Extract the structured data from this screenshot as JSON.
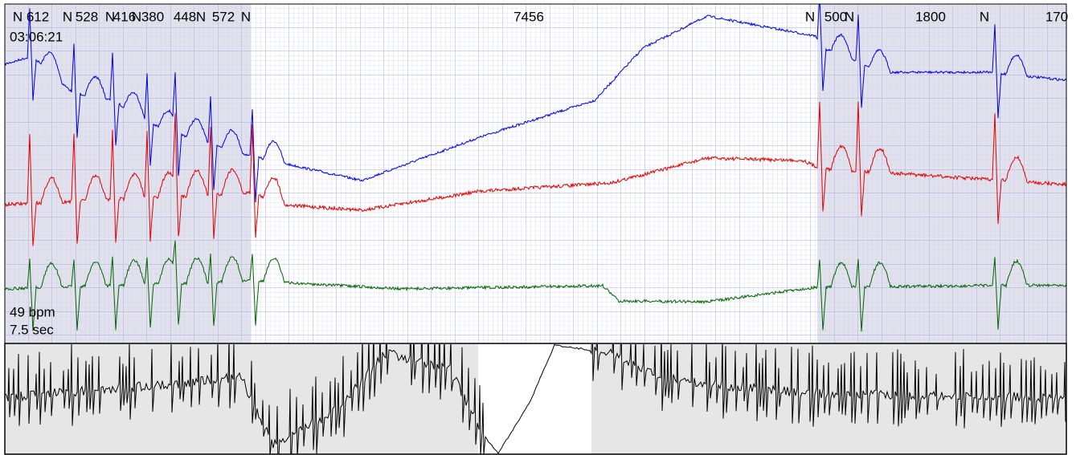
{
  "beat_labels": [
    "N",
    "612",
    "N",
    "528",
    "N",
    "416",
    "N",
    "380",
    "448",
    "N",
    "572",
    "N",
    "7456",
    "N",
    "500",
    "N",
    "1800",
    "N",
    "170"
  ],
  "time": "03:06:21",
  "rate": "49 bpm",
  "duration": "7.5 sec"
}
